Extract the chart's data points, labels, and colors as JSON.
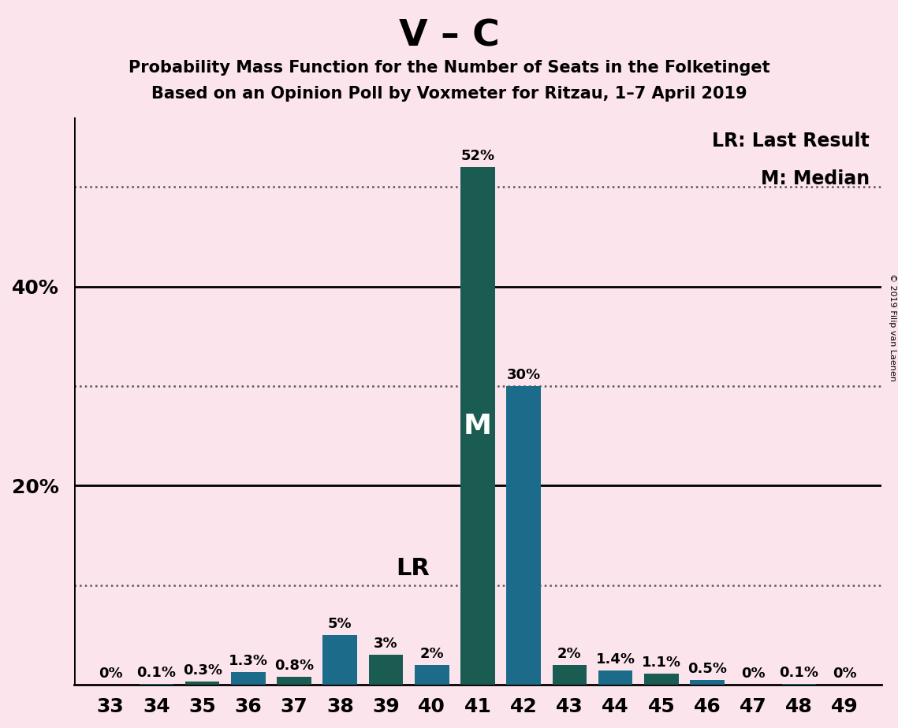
{
  "title_main": "V – C",
  "title_sub1": "Probability Mass Function for the Number of Seats in the Folketinget",
  "title_sub2": "Based on an Opinion Poll by Voxmeter for Ritzau, 1–7 April 2019",
  "copyright": "© 2019 Filip van Laenen",
  "legend_lr": "LR: Last Result",
  "legend_m": "M: Median",
  "seats": [
    33,
    34,
    35,
    36,
    37,
    38,
    39,
    40,
    41,
    42,
    43,
    44,
    45,
    46,
    47,
    48,
    49
  ],
  "values": [
    0.0,
    0.1,
    0.3,
    1.3,
    0.8,
    5.0,
    3.0,
    2.0,
    52.0,
    30.0,
    2.0,
    1.4,
    1.1,
    0.5,
    0.0,
    0.1,
    0.0
  ],
  "labels": [
    "0%",
    "0.1%",
    "0.3%",
    "1.3%",
    "0.8%",
    "5%",
    "3%",
    "2%",
    "52%",
    "30%",
    "2%",
    "1.4%",
    "1.1%",
    "0.5%",
    "0%",
    "0.1%",
    "0%"
  ],
  "colors": [
    "#1c6b8a",
    "#1c6b8a",
    "#1a5c52",
    "#1c6b8a",
    "#1a5c52",
    "#1c6b8a",
    "#1a5c52",
    "#1c6b8a",
    "#1a5c52",
    "#1c6b8a",
    "#1a5c52",
    "#1c6b8a",
    "#1a5c52",
    "#1c6b8a",
    "#1a5c52",
    "#1c6b8a",
    "#1a5c52"
  ],
  "lr_seat": 40,
  "median_seat": 41,
  "background_color": "#fce4ec",
  "ylim": [
    0,
    57
  ],
  "dotted_lines": [
    10,
    30,
    50
  ],
  "solid_lines": [
    20,
    40
  ],
  "ytick_positions": [
    20,
    40
  ],
  "ytick_labels": [
    "20%",
    "40%"
  ],
  "bar_width": 0.75,
  "label_fontsize": 13,
  "tick_fontsize": 18
}
